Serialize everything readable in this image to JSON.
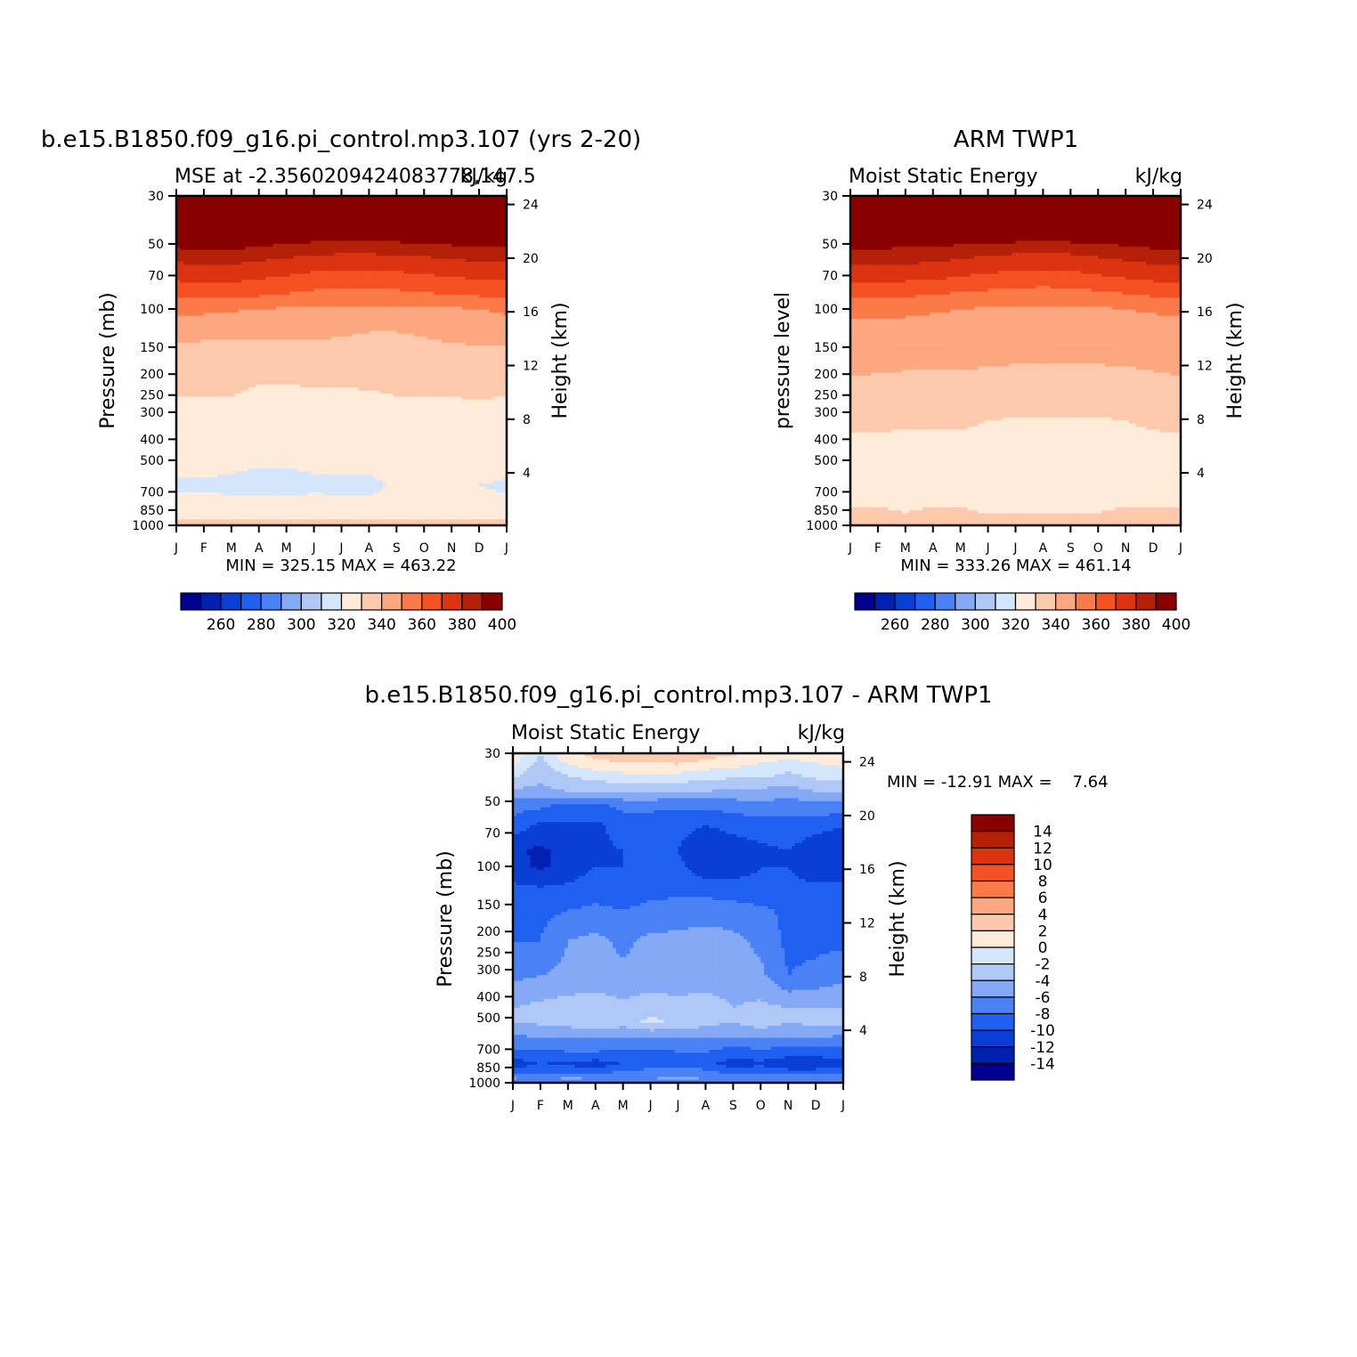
{
  "chart_data": [
    {
      "type": "heatmap",
      "title": "b.e15.B1850.f09_g16.pi_control.mp3.107 (yrs 2-20)",
      "subtitle_left": "MSE at -2.3560209424083778,147.5",
      "subtitle_right": "kJ/kg",
      "ylabel": "Pressure (mb)",
      "ylabel_right": "Height (km)",
      "x_ticks": [
        "J",
        "F",
        "M",
        "A",
        "M",
        "J",
        "J",
        "A",
        "S",
        "O",
        "N",
        "D",
        "J"
      ],
      "y_ticks": [
        "30",
        "50",
        "70",
        "100",
        "150",
        "200",
        "250",
        "300",
        "400",
        "500",
        "700",
        "850",
        "1000"
      ],
      "y_ticks_right": [
        "24",
        "20",
        "16",
        "12",
        "8",
        "4"
      ],
      "stats": "MIN = 325.15 MAX = 463.22",
      "colorbar_labels": [
        "260",
        "280",
        "300",
        "320",
        "340",
        "360",
        "380",
        "400"
      ],
      "levels": [
        250,
        260,
        270,
        280,
        290,
        300,
        310,
        320,
        330,
        340,
        350,
        360,
        370,
        380,
        390,
        400,
        410
      ],
      "x_months": [
        0,
        1,
        2,
        3,
        4,
        5,
        6,
        7,
        8,
        9,
        10,
        11,
        12
      ],
      "values_by_pressure": [
        {
          "p": 30,
          "values": [
            463,
            462,
            461,
            459,
            457,
            455,
            454,
            454,
            455,
            457,
            459,
            461,
            463
          ]
        },
        {
          "p": 50,
          "values": [
            403,
            404,
            404,
            402,
            400,
            398,
            397,
            397,
            398,
            399,
            401,
            402,
            403
          ]
        },
        {
          "p": 60,
          "values": [
            391,
            392,
            392,
            390,
            388,
            386,
            385,
            385,
            386,
            387,
            389,
            390,
            391
          ]
        },
        {
          "p": 70,
          "values": [
            383,
            384,
            384,
            382,
            380,
            378,
            377,
            377,
            378,
            379,
            381,
            382,
            383
          ]
        },
        {
          "p": 85,
          "values": [
            373,
            374,
            374,
            372,
            370,
            368,
            367,
            367,
            368,
            369,
            371,
            372,
            373
          ]
        },
        {
          "p": 100,
          "values": [
            362,
            362,
            361,
            360,
            359,
            358,
            358,
            358,
            358,
            358,
            359,
            360,
            362
          ]
        },
        {
          "p": 140,
          "values": [
            351,
            350,
            350,
            350,
            350,
            350,
            349,
            347,
            347,
            349,
            351,
            351,
            351
          ]
        },
        {
          "p": 200,
          "values": [
            342,
            342,
            342,
            341,
            341,
            341,
            341,
            341,
            341,
            341,
            341,
            342,
            342
          ]
        },
        {
          "p": 400,
          "values": [
            336,
            336,
            336,
            335,
            335,
            336,
            336,
            337,
            338,
            338,
            338,
            337,
            336
          ]
        },
        {
          "p": 650,
          "values": [
            329,
            329,
            328,
            327,
            327,
            328,
            328,
            328,
            331,
            331,
            331,
            330,
            329
          ]
        },
        {
          "p": 850,
          "values": [
            332,
            333,
            333,
            334,
            334,
            334,
            333,
            333,
            333,
            333,
            333,
            332,
            332
          ]
        },
        {
          "p": 920,
          "values": [
            338,
            338,
            338,
            338,
            338,
            338,
            338,
            338,
            338,
            338,
            338,
            338,
            338
          ]
        },
        {
          "p": 1000,
          "values": [
            345,
            345,
            345,
            345,
            345,
            345,
            345,
            345,
            345,
            345,
            345,
            345,
            345
          ]
        }
      ]
    },
    {
      "type": "heatmap",
      "title": "ARM TWP1",
      "subtitle_left": "Moist Static Energy",
      "subtitle_right": "kJ/kg",
      "ylabel": "pressure level",
      "ylabel_right": "Height (km)",
      "x_ticks": [
        "J",
        "F",
        "M",
        "A",
        "M",
        "J",
        "J",
        "A",
        "S",
        "O",
        "N",
        "D",
        "J"
      ],
      "y_ticks": [
        "30",
        "50",
        "70",
        "100",
        "150",
        "200",
        "250",
        "300",
        "400",
        "500",
        "700",
        "850",
        "1000"
      ],
      "y_ticks_right": [
        "24",
        "20",
        "16",
        "12",
        "8",
        "4"
      ],
      "stats": "MIN = 333.26 MAX = 461.14",
      "colorbar_labels": [
        "260",
        "280",
        "300",
        "320",
        "340",
        "360",
        "380",
        "400"
      ],
      "levels": [
        250,
        260,
        270,
        280,
        290,
        300,
        310,
        320,
        330,
        340,
        350,
        360,
        370,
        380,
        390,
        400,
        410
      ],
      "x_months": [
        0,
        1,
        2,
        3,
        4,
        5,
        6,
        7,
        8,
        9,
        10,
        11,
        12
      ],
      "values_by_pressure": [
        {
          "p": 30,
          "values": [
            461,
            461,
            460,
            459,
            457,
            455,
            454,
            453,
            454,
            456,
            458,
            460,
            461
          ]
        },
        {
          "p": 52,
          "values": [
            402,
            401,
            400,
            399,
            397,
            395,
            394,
            392,
            394,
            396,
            398,
            401,
            402
          ]
        },
        {
          "p": 62,
          "values": [
            391,
            391,
            390,
            389,
            387,
            385,
            384,
            383,
            384,
            386,
            388,
            390,
            391
          ]
        },
        {
          "p": 72,
          "values": [
            383,
            383,
            382,
            381,
            379,
            377,
            376,
            375,
            376,
            378,
            380,
            382,
            383
          ]
        },
        {
          "p": 85,
          "values": [
            373,
            373,
            372,
            371,
            369,
            368,
            367,
            366,
            367,
            368,
            370,
            372,
            373
          ]
        },
        {
          "p": 100,
          "values": [
            362,
            362,
            362,
            361,
            360,
            359,
            358,
            358,
            358,
            359,
            360,
            361,
            362
          ]
        },
        {
          "p": 130,
          "values": [
            356,
            356,
            356,
            356,
            356,
            356,
            356,
            356,
            356,
            356,
            356,
            356,
            356
          ]
        },
        {
          "p": 350,
          "values": [
            343,
            342,
            341,
            341,
            341,
            339,
            338,
            338,
            338,
            338,
            339,
            341,
            343
          ]
        },
        {
          "p": 400,
          "values": [
            337,
            337,
            337,
            336,
            336,
            335,
            335,
            334,
            334,
            334,
            336,
            337,
            337
          ]
        },
        {
          "p": 700,
          "values": [
            336,
            336,
            336,
            336,
            336,
            336,
            336,
            336,
            336,
            336,
            336,
            336,
            336
          ]
        },
        {
          "p": 850,
          "values": [
            341,
            341,
            339,
            341,
            341,
            338,
            338,
            338,
            338,
            339,
            341,
            341,
            341
          ]
        },
        {
          "p": 1000,
          "values": [
            346,
            346,
            346,
            346,
            346,
            346,
            346,
            346,
            346,
            346,
            346,
            346,
            346
          ]
        }
      ]
    },
    {
      "type": "heatmap",
      "title": "b.e15.B1850.f09_g16.pi_control.mp3.107 - ARM TWP1",
      "subtitle_left": "Moist Static Energy",
      "subtitle_right": "kJ/kg",
      "ylabel": "Pressure (mb)",
      "ylabel_right": "Height (km)",
      "x_ticks": [
        "J",
        "F",
        "M",
        "A",
        "M",
        "J",
        "J",
        "A",
        "S",
        "O",
        "N",
        "D",
        "J"
      ],
      "y_ticks": [
        "30",
        "50",
        "70",
        "100",
        "150",
        "200",
        "250",
        "300",
        "400",
        "500",
        "700",
        "850",
        "1000"
      ],
      "y_ticks_right": [
        "24",
        "20",
        "16",
        "12",
        "8",
        "4"
      ],
      "stats": "MIN = -12.91 MAX =    7.64",
      "colorbar_labels": [
        "14",
        "12",
        "10",
        "8",
        "6",
        "4",
        "2",
        "0",
        "-2",
        "-4",
        "-6",
        "-8",
        "-10",
        "-12",
        "-14"
      ],
      "levels": [
        -16,
        -14,
        -12,
        -10,
        -8,
        -6,
        -4,
        -2,
        0,
        2,
        4,
        6,
        8,
        10,
        12,
        14,
        16
      ],
      "x_months": [
        0,
        1,
        2,
        3,
        4,
        5,
        6,
        7,
        8,
        9,
        10,
        11,
        12
      ],
      "values_by_pressure": [
        {
          "p": 25,
          "values": [
            1.5,
            0.5,
            3,
            3.5,
            5,
            3.5,
            7.5,
            5,
            4.5,
            4,
            0.5,
            3,
            2.5
          ]
        },
        {
          "p": 32,
          "values": [
            1,
            -2.5,
            1,
            2,
            2.5,
            2.5,
            3,
            2,
            1.5,
            0.5,
            0,
            0.5,
            1
          ]
        },
        {
          "p": 38,
          "values": [
            -1.5,
            -3.5,
            -2,
            -1,
            -0.5,
            -0.5,
            -0.5,
            -1,
            -1.5,
            -1.5,
            -2.5,
            -1.5,
            -1
          ]
        },
        {
          "p": 45,
          "values": [
            -4.5,
            -4.5,
            -4,
            -4,
            -3.5,
            -3.5,
            -4,
            -4,
            -4.5,
            -4.5,
            -5,
            -4,
            -4
          ]
        },
        {
          "p": 52,
          "values": [
            -7,
            -7.5,
            -8.5,
            -8.5,
            -7.5,
            -7.5,
            -7.5,
            -7.5,
            -7,
            -6.5,
            -7,
            -6.5,
            -6.5
          ]
        },
        {
          "p": 65,
          "values": [
            -9,
            -10.5,
            -10.5,
            -10.5,
            -9,
            -9,
            -9.5,
            -10,
            -9.5,
            -9,
            -9,
            -9.5,
            -10
          ]
        },
        {
          "p": 85,
          "values": [
            -11.5,
            -12.5,
            -11,
            -10.5,
            -10,
            -10,
            -10,
            -11.5,
            -11,
            -10.5,
            -10,
            -11,
            -11
          ]
        },
        {
          "p": 100,
          "values": [
            -11,
            -12.5,
            -11,
            -10,
            -10,
            -10,
            -9.5,
            -11.5,
            -11,
            -10,
            -10,
            -11,
            -11
          ]
        },
        {
          "p": 130,
          "values": [
            -9.5,
            -9.5,
            -9.5,
            -9,
            -9,
            -8.5,
            -8.5,
            -8.5,
            -9,
            -9.5,
            -9.5,
            -9.5,
            -9.5
          ]
        },
        {
          "p": 160,
          "values": [
            -8.5,
            -8.5,
            -8,
            -7.5,
            -8,
            -7.5,
            -7,
            -7,
            -7,
            -7.5,
            -8.5,
            -8.5,
            -8.5
          ]
        },
        {
          "p": 220,
          "values": [
            -8,
            -8,
            -6,
            -5.5,
            -6.5,
            -5.5,
            -5.5,
            -5,
            -5.5,
            -6.5,
            -8.5,
            -8.5,
            -8.5
          ]
        },
        {
          "p": 320,
          "values": [
            -6.5,
            -6,
            -5.5,
            -5,
            -5.5,
            -5,
            -5,
            -5,
            -5,
            -5.5,
            -8,
            -7.5,
            -6.5
          ]
        },
        {
          "p": 450,
          "values": [
            -4,
            -3.5,
            -3,
            -3,
            -3.5,
            -3,
            -3.5,
            -3,
            -4,
            -3.5,
            -4,
            -4,
            -4
          ]
        },
        {
          "p": 520,
          "values": [
            -4,
            -3.5,
            -3,
            -2,
            -3,
            -1.5,
            -2.5,
            -3,
            -4,
            -2.5,
            -4,
            -3,
            -3
          ]
        },
        {
          "p": 620,
          "values": [
            -6.5,
            -6,
            -6,
            -6,
            -6,
            -6,
            -6,
            -6,
            -6,
            -6,
            -6,
            -6,
            -6.5
          ]
        },
        {
          "p": 720,
          "values": [
            -8.5,
            -8.5,
            -8,
            -8,
            -8.5,
            -8.5,
            -8,
            -8,
            -9,
            -8.5,
            -9,
            -9,
            -9
          ]
        },
        {
          "p": 820,
          "values": [
            -11,
            -10,
            -10.5,
            -11,
            -10,
            -9,
            -9,
            -9.5,
            -11,
            -10.5,
            -11.5,
            -11.5,
            -10.5
          ]
        },
        {
          "p": 900,
          "values": [
            -9,
            -8,
            -8,
            -8.5,
            -7.5,
            -7,
            -7,
            -7,
            -8.5,
            -8,
            -9,
            -9,
            -8.5
          ]
        },
        {
          "p": 960,
          "values": [
            -5.5,
            -6.5,
            -5.5,
            -6,
            -6,
            -6,
            -5.5,
            -6,
            -6,
            -6,
            -6,
            -6,
            -6
          ]
        },
        {
          "p": 1000,
          "values": [
            -6.5,
            -6.5,
            -6.5,
            -6.5,
            -6.5,
            -6.5,
            -6.5,
            -6.5,
            -6.5,
            -6.5,
            -6.5,
            -6.5,
            -6.5
          ]
        }
      ]
    }
  ],
  "colors": {
    "mse_palette": [
      "#000090",
      "#0020b0",
      "#0a3fd6",
      "#2060f0",
      "#4a82f5",
      "#84a9f5",
      "#b0c8f5",
      "#d4e6fb",
      "#feebd9",
      "#fdc9ad",
      "#fca780",
      "#fb7a48",
      "#f55122",
      "#dc3310",
      "#b52008",
      "#8a0000"
    ],
    "diff_palette": [
      "#000090",
      "#0020b0",
      "#0a3fd6",
      "#2060f0",
      "#4a82f5",
      "#84a9f5",
      "#b0c8f5",
      "#d4e6fb",
      "#feebd9",
      "#fdc9ad",
      "#fca780",
      "#fb7a48",
      "#f55122",
      "#dc3310",
      "#b52008",
      "#8a0000"
    ]
  }
}
